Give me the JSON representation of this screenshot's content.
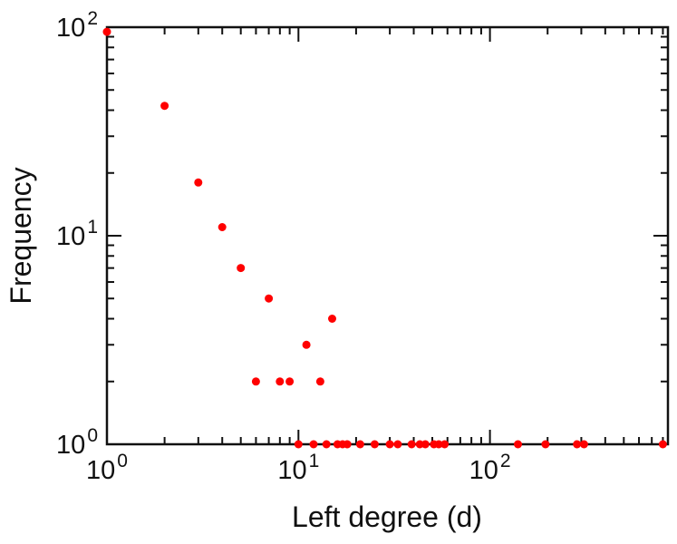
{
  "figure": {
    "background": "#ffffff",
    "text_color": "#111111"
  },
  "chart_data": {
    "type": "scatter",
    "title": "",
    "xlabel": "Left degree (d)",
    "ylabel": "Frequency",
    "x_scale": "log",
    "y_scale": "log",
    "xlim": [
      1,
      850
    ],
    "ylim": [
      1,
      100
    ],
    "x_tick_exponents": [
      0,
      1,
      2
    ],
    "y_tick_exponents": [
      0,
      1,
      2
    ],
    "grid": false,
    "legend": "none",
    "marker": "filled-circle",
    "point_color": "#ff0000",
    "axis_color": "#111111",
    "points": [
      {
        "x": 1,
        "y": 95
      },
      {
        "x": 2,
        "y": 42
      },
      {
        "x": 3,
        "y": 18
      },
      {
        "x": 4,
        "y": 11
      },
      {
        "x": 5,
        "y": 7
      },
      {
        "x": 7,
        "y": 5
      },
      {
        "x": 6,
        "y": 2
      },
      {
        "x": 8,
        "y": 2
      },
      {
        "x": 9,
        "y": 2
      },
      {
        "x": 13,
        "y": 2
      },
      {
        "x": 11,
        "y": 3
      },
      {
        "x": 15,
        "y": 4
      },
      {
        "x": 10,
        "y": 1
      },
      {
        "x": 12,
        "y": 1
      },
      {
        "x": 14,
        "y": 1
      },
      {
        "x": 16,
        "y": 1
      },
      {
        "x": 17,
        "y": 1
      },
      {
        "x": 18,
        "y": 1
      },
      {
        "x": 21,
        "y": 1
      },
      {
        "x": 25,
        "y": 1
      },
      {
        "x": 30,
        "y": 1
      },
      {
        "x": 33,
        "y": 1
      },
      {
        "x": 39,
        "y": 1
      },
      {
        "x": 43,
        "y": 1
      },
      {
        "x": 46,
        "y": 1
      },
      {
        "x": 51,
        "y": 1
      },
      {
        "x": 54,
        "y": 1
      },
      {
        "x": 58,
        "y": 1
      },
      {
        "x": 140,
        "y": 1
      },
      {
        "x": 195,
        "y": 1
      },
      {
        "x": 285,
        "y": 1
      },
      {
        "x": 310,
        "y": 1
      },
      {
        "x": 800,
        "y": 1
      }
    ]
  }
}
